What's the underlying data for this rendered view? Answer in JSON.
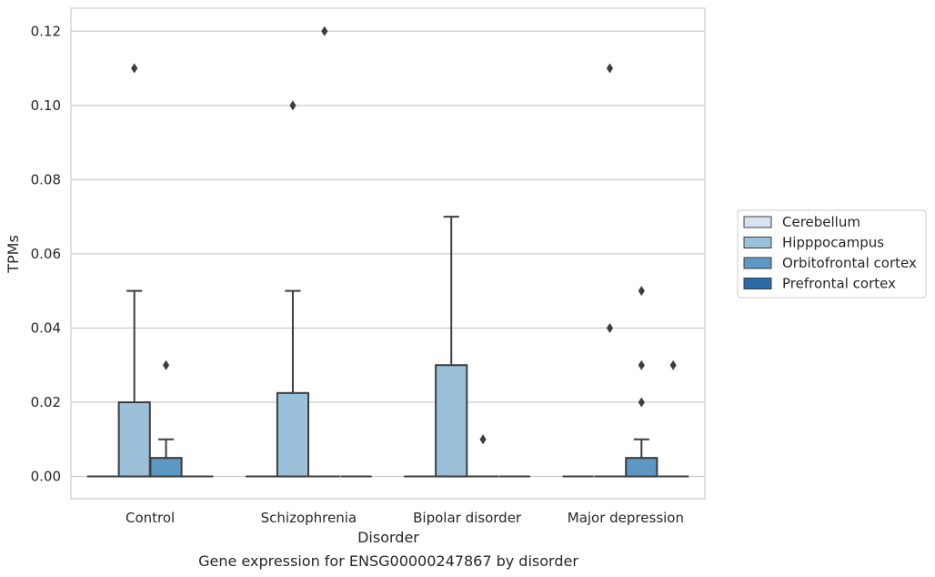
{
  "chart_data": {
    "type": "box",
    "title": "Gene expression for ENSG00000247867 by disorder",
    "xlabel": "Disorder",
    "ylabel": "TPMs",
    "ylim": [
      -0.006,
      0.1262
    ],
    "yticks": [
      0.0,
      0.02,
      0.04,
      0.06,
      0.08,
      0.1,
      0.12
    ],
    "ytick_labels": [
      "0.00",
      "0.02",
      "0.04",
      "0.06",
      "0.08",
      "0.10",
      "0.12"
    ],
    "categories": [
      "Control",
      "Schizophrenia",
      "Bipolar disorder",
      "Major depression"
    ],
    "grid": "horizontal",
    "legend_position": "right",
    "series": [
      {
        "name": "Cerebellum",
        "color": "#d7e4f0",
        "boxes": [
          {
            "q1": 0,
            "median": 0,
            "q3": 0,
            "whisker_low": 0,
            "whisker_high": 0,
            "outliers": []
          },
          {
            "q1": 0,
            "median": 0,
            "q3": 0,
            "whisker_low": 0,
            "whisker_high": 0,
            "outliers": []
          },
          {
            "q1": 0,
            "median": 0,
            "q3": 0,
            "whisker_low": 0,
            "whisker_high": 0,
            "outliers": []
          },
          {
            "q1": 0,
            "median": 0,
            "q3": 0,
            "whisker_low": 0,
            "whisker_high": 0,
            "outliers": []
          }
        ]
      },
      {
        "name": "Hipppocampus",
        "color": "#9ac0da",
        "boxes": [
          {
            "q1": 0,
            "median": 0,
            "q3": 0.02,
            "whisker_low": 0,
            "whisker_high": 0.05,
            "outliers": [
              0.11
            ]
          },
          {
            "q1": 0,
            "median": 0,
            "q3": 0.0225,
            "whisker_low": 0,
            "whisker_high": 0.05,
            "outliers": [
              0.1
            ]
          },
          {
            "q1": 0,
            "median": 0,
            "q3": 0.03,
            "whisker_low": 0,
            "whisker_high": 0.07,
            "outliers": []
          },
          {
            "q1": 0,
            "median": 0,
            "q3": 0,
            "whisker_low": 0,
            "whisker_high": 0,
            "outliers": [
              0.11,
              0.04
            ]
          }
        ]
      },
      {
        "name": "Orbitofrontal cortex",
        "color": "#5d97c4",
        "boxes": [
          {
            "q1": 0,
            "median": 0,
            "q3": 0.005,
            "whisker_low": 0,
            "whisker_high": 0.01,
            "outliers": [
              0.03
            ]
          },
          {
            "q1": 0,
            "median": 0,
            "q3": 0,
            "whisker_low": 0,
            "whisker_high": 0,
            "outliers": [
              0.12
            ]
          },
          {
            "q1": 0,
            "median": 0,
            "q3": 0,
            "whisker_low": 0,
            "whisker_high": 0,
            "outliers": [
              0.01
            ]
          },
          {
            "q1": 0,
            "median": 0,
            "q3": 0.005,
            "whisker_low": 0,
            "whisker_high": 0.01,
            "outliers": [
              0.05,
              0.03,
              0.02
            ]
          }
        ]
      },
      {
        "name": "Prefrontal cortex",
        "color": "#2c6ba7",
        "boxes": [
          {
            "q1": 0,
            "median": 0,
            "q3": 0,
            "whisker_low": 0,
            "whisker_high": 0,
            "outliers": []
          },
          {
            "q1": 0,
            "median": 0,
            "q3": 0,
            "whisker_low": 0,
            "whisker_high": 0,
            "outliers": []
          },
          {
            "q1": 0,
            "median": 0,
            "q3": 0,
            "whisker_low": 0,
            "whisker_high": 0,
            "outliers": []
          },
          {
            "q1": 0,
            "median": 0,
            "q3": 0,
            "whisker_low": 0,
            "whisker_high": 0,
            "outliers": [
              0.03
            ]
          }
        ]
      }
    ]
  }
}
